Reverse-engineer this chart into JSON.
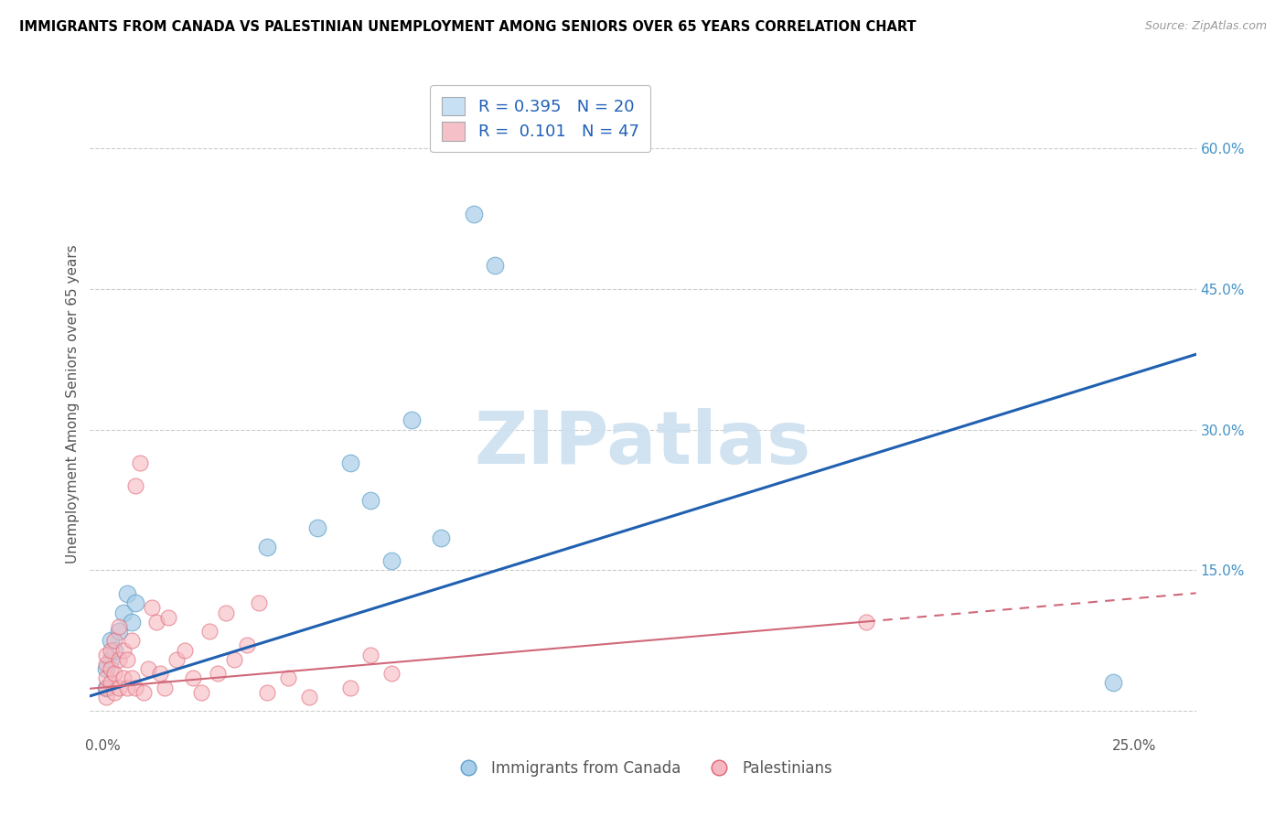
{
  "title": "IMMIGRANTS FROM CANADA VS PALESTINIAN UNEMPLOYMENT AMONG SENIORS OVER 65 YEARS CORRELATION CHART",
  "source": "Source: ZipAtlas.com",
  "ylabel": "Unemployment Among Seniors over 65 years",
  "right_yticks": [
    0.0,
    0.15,
    0.3,
    0.45,
    0.6
  ],
  "right_yticklabels": [
    "",
    "15.0%",
    "30.0%",
    "45.0%",
    "60.0%"
  ],
  "xticks": [
    0.0,
    0.05,
    0.1,
    0.15,
    0.2,
    0.25
  ],
  "xticklabels": [
    "0.0%",
    "",
    "",
    "",
    "",
    "25.0%"
  ],
  "xlim": [
    -0.003,
    0.265
  ],
  "ylim": [
    -0.025,
    0.68
  ],
  "canada_x": [
    0.001,
    0.001,
    0.002,
    0.002,
    0.003,
    0.004,
    0.005,
    0.006,
    0.007,
    0.008,
    0.04,
    0.052,
    0.06,
    0.065,
    0.07,
    0.075,
    0.082,
    0.09,
    0.095,
    0.245
  ],
  "canada_y": [
    0.025,
    0.045,
    0.055,
    0.075,
    0.065,
    0.085,
    0.105,
    0.125,
    0.095,
    0.115,
    0.175,
    0.195,
    0.265,
    0.225,
    0.16,
    0.31,
    0.185,
    0.53,
    0.475,
    0.03
  ],
  "pales_x": [
    0.001,
    0.001,
    0.001,
    0.001,
    0.001,
    0.002,
    0.002,
    0.002,
    0.003,
    0.003,
    0.003,
    0.004,
    0.004,
    0.004,
    0.005,
    0.005,
    0.006,
    0.006,
    0.007,
    0.007,
    0.008,
    0.008,
    0.009,
    0.01,
    0.011,
    0.012,
    0.013,
    0.014,
    0.015,
    0.016,
    0.018,
    0.02,
    0.022,
    0.024,
    0.026,
    0.028,
    0.03,
    0.032,
    0.035,
    0.038,
    0.04,
    0.045,
    0.05,
    0.06,
    0.065,
    0.07,
    0.185
  ],
  "pales_y": [
    0.015,
    0.025,
    0.035,
    0.05,
    0.06,
    0.03,
    0.045,
    0.065,
    0.02,
    0.04,
    0.075,
    0.025,
    0.055,
    0.09,
    0.035,
    0.065,
    0.025,
    0.055,
    0.035,
    0.075,
    0.025,
    0.24,
    0.265,
    0.02,
    0.045,
    0.11,
    0.095,
    0.04,
    0.025,
    0.1,
    0.055,
    0.065,
    0.035,
    0.02,
    0.085,
    0.04,
    0.105,
    0.055,
    0.07,
    0.115,
    0.02,
    0.035,
    0.015,
    0.025,
    0.06,
    0.04,
    0.095
  ],
  "canada_color": "#a8cde8",
  "canada_edge": "#5a9ec9",
  "pales_color": "#f5b8c0",
  "pales_edge": "#e06070",
  "legend_box_color": "#c8e0f4",
  "legend_pink_color": "#f5c0c8",
  "R_canada": 0.395,
  "N_canada": 20,
  "R_pales": 0.101,
  "N_pales": 47,
  "watermark": "ZIPatlas",
  "watermark_color": "#cce0f0",
  "grid_color": "#cccccc",
  "blue_line_color": "#2060b0",
  "pink_line_color": "#d06878",
  "blue_line_intercept": 0.02,
  "blue_line_slope": 1.36,
  "pink_line_intercept": 0.025,
  "pink_line_slope": 0.38
}
